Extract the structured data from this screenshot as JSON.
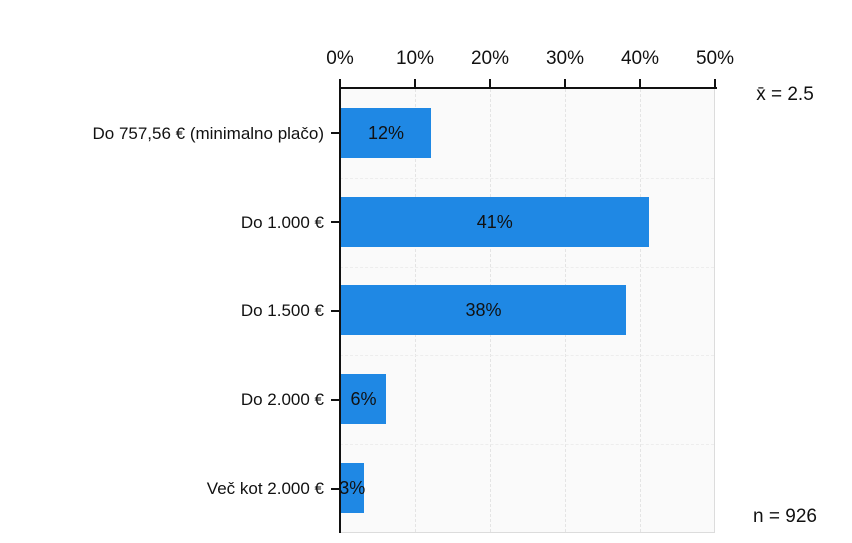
{
  "chart_data": {
    "type": "bar",
    "orientation": "horizontal",
    "title": "",
    "xlabel": "",
    "ylabel": "",
    "xlim": [
      0,
      50
    ],
    "x_ticks": [
      "0%",
      "10%",
      "20%",
      "30%",
      "40%",
      "50%"
    ],
    "grid": true,
    "bar_color": "#1f88e4",
    "categories": [
      "Do 757,56 € (minimalno plačo)",
      "Do 1.000 €",
      "Do 1.500 €",
      "Do 2.000 €",
      "Več kot 2.000 €"
    ],
    "values": [
      12,
      41,
      38,
      6,
      3
    ],
    "value_labels": [
      "12%",
      "41%",
      "38%",
      "6%",
      "3%"
    ],
    "annotations": {
      "mean": "x̄ = 2.5",
      "sample_size": "n = 926"
    }
  }
}
